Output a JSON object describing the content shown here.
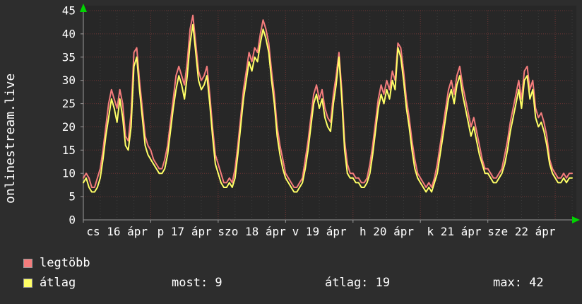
{
  "chart": {
    "vertical_label": "onlinestream.live",
    "colors": {
      "page_background": "#2d2d2d",
      "plot_background": "#272727",
      "grid_major": "#6b3535",
      "grid_minor": "#3e3e3e",
      "axis": "#9a9a9a",
      "arrow": "#00d400",
      "text": "#ffffff",
      "series_legtobb": "#f47c7c",
      "series_atlag": "#ffff66"
    }
  },
  "chart_data": {
    "type": "line",
    "title": "",
    "ylabel": "onlinestream.live",
    "xlabel": "",
    "ylim": [
      0,
      45
    ],
    "y_ticks": [
      0,
      5,
      10,
      15,
      20,
      25,
      30,
      35,
      40,
      45
    ],
    "grid": true,
    "legend_position": "bottom-left",
    "x_unit": "hours from cs 16 ápr 00:00 (hourly samples, ~7.25 days)",
    "x_tick_labels": [
      "cs 16 ápr",
      "p 17 ápr",
      "szo 18 ápr",
      "v 19 ápr",
      "h 20 ápr",
      "k 21 ápr",
      "sze 22 ápr"
    ],
    "day_starts_hours": [
      0,
      24,
      48,
      72,
      96,
      120,
      144
    ],
    "series": [
      {
        "name": "legtöbb",
        "color": "#f47c7c",
        "values": [
          9,
          10,
          9,
          7,
          7,
          9,
          11,
          15,
          20,
          25,
          28,
          26,
          24,
          28,
          25,
          18,
          17,
          23,
          36,
          37,
          30,
          24,
          18,
          16,
          15,
          13,
          12,
          11,
          11,
          13,
          16,
          21,
          26,
          31,
          33,
          31,
          29,
          34,
          41,
          44,
          38,
          32,
          30,
          31,
          33,
          27,
          20,
          14,
          12,
          10,
          8,
          8,
          9,
          8,
          11,
          16,
          22,
          28,
          32,
          36,
          34,
          37,
          36,
          40,
          43,
          41,
          38,
          32,
          27,
          20,
          16,
          13,
          10,
          9,
          8,
          7,
          7,
          8,
          9,
          13,
          17,
          22,
          27,
          29,
          26,
          28,
          24,
          22,
          21,
          27,
          31,
          36,
          28,
          17,
          12,
          10,
          10,
          9,
          9,
          8,
          8,
          9,
          12,
          16,
          21,
          26,
          29,
          27,
          30,
          28,
          32,
          30,
          38,
          37,
          32,
          26,
          22,
          17,
          13,
          10,
          9,
          8,
          7,
          8,
          7,
          9,
          12,
          16,
          20,
          24,
          28,
          30,
          27,
          31,
          33,
          29,
          26,
          23,
          20,
          22,
          19,
          16,
          13,
          11,
          11,
          10,
          9,
          9,
          10,
          11,
          14,
          17,
          21,
          24,
          27,
          30,
          26,
          32,
          33,
          28,
          30,
          24,
          22,
          23,
          21,
          18,
          13,
          11,
          10,
          9,
          9,
          10,
          9,
          10,
          10
        ]
      },
      {
        "name": "átlag",
        "color": "#ffff66",
        "values": [
          8,
          9,
          7,
          6,
          6,
          7,
          9,
          13,
          18,
          22,
          26,
          24,
          21,
          26,
          22,
          16,
          15,
          20,
          33,
          35,
          28,
          22,
          16,
          14,
          13,
          12,
          11,
          10,
          10,
          11,
          14,
          19,
          24,
          28,
          31,
          29,
          26,
          31,
          38,
          42,
          36,
          30,
          28,
          29,
          31,
          25,
          18,
          12,
          10,
          8,
          7,
          7,
          8,
          7,
          9,
          14,
          20,
          26,
          30,
          34,
          32,
          35,
          34,
          38,
          41,
          39,
          36,
          30,
          25,
          18,
          14,
          11,
          9,
          8,
          7,
          6,
          6,
          7,
          8,
          11,
          15,
          20,
          25,
          27,
          24,
          26,
          22,
          20,
          19,
          25,
          29,
          35,
          26,
          15,
          10,
          9,
          9,
          8,
          8,
          7,
          7,
          8,
          10,
          14,
          19,
          24,
          27,
          25,
          28,
          26,
          30,
          28,
          37,
          35,
          30,
          24,
          20,
          15,
          11,
          9,
          8,
          7,
          6,
          7,
          6,
          8,
          10,
          14,
          18,
          22,
          26,
          28,
          25,
          29,
          31,
          27,
          24,
          21,
          18,
          20,
          17,
          14,
          12,
          10,
          10,
          9,
          8,
          8,
          9,
          10,
          12,
          15,
          19,
          22,
          25,
          28,
          24,
          30,
          31,
          26,
          28,
          22,
          20,
          21,
          19,
          16,
          12,
          10,
          9,
          8,
          8,
          9,
          8,
          9,
          9
        ]
      }
    ],
    "stats": {
      "most": 9,
      "átlag": 19,
      "max": 42
    }
  },
  "legend": {
    "series": [
      {
        "label": "legtöbb",
        "color": "#f47c7c"
      },
      {
        "label": "átlag",
        "color": "#ffff66"
      }
    ],
    "stats": [
      "most: 9",
      "átlag: 19",
      "max: 42"
    ]
  }
}
